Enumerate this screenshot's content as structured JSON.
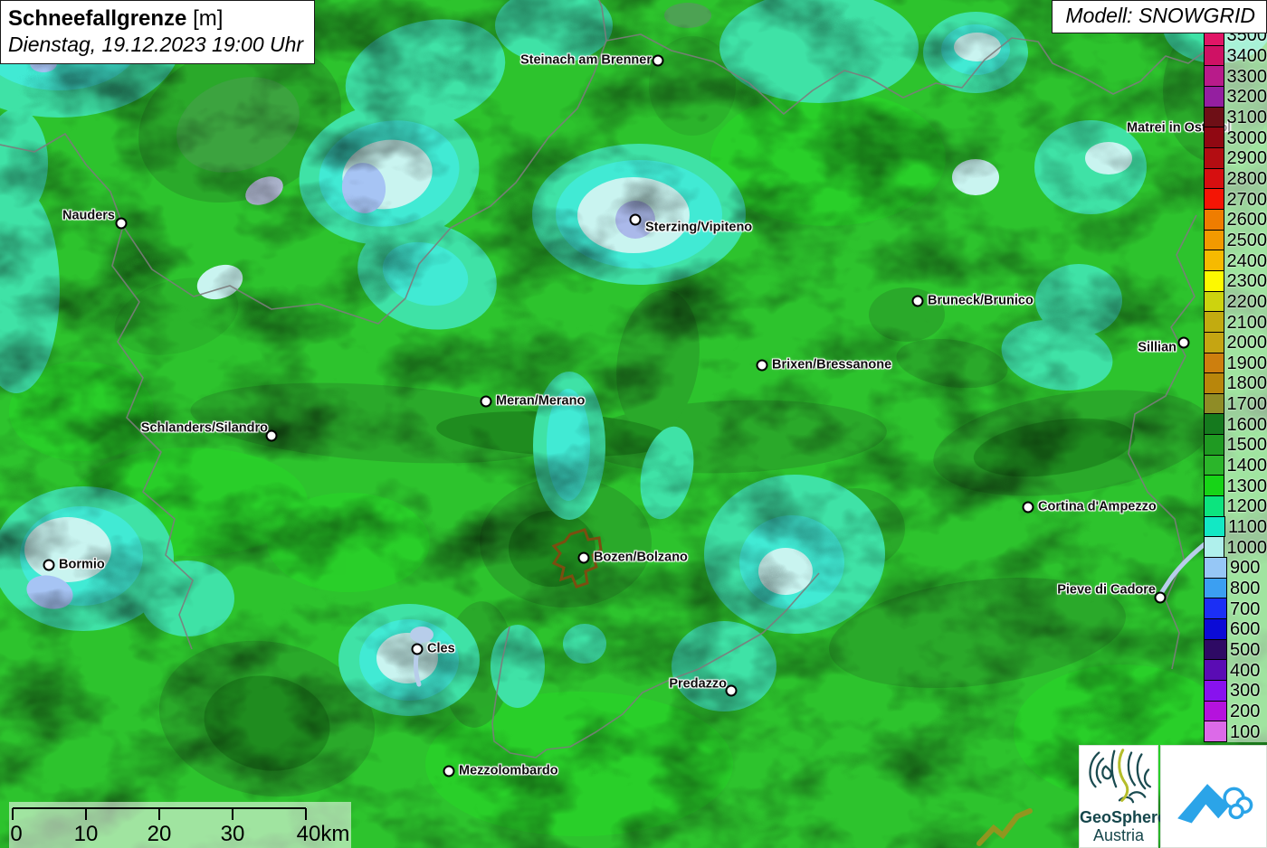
{
  "title": {
    "main": "Schneefallgrenze",
    "unit": "[m]",
    "datetime": "Dienstag, 19.12.2023 19:00 Uhr"
  },
  "model_label": "Modell: SNOWGRID",
  "legend": {
    "unit": "m",
    "entries": [
      {
        "value": "3500",
        "color": "#e11566"
      },
      {
        "value": "3400",
        "color": "#cf1164"
      },
      {
        "value": "3300",
        "color": "#b81b8a"
      },
      {
        "value": "3200",
        "color": "#941fa0"
      },
      {
        "value": "3100",
        "color": "#6e0f16"
      },
      {
        "value": "3000",
        "color": "#900812"
      },
      {
        "value": "2900",
        "color": "#b30d12"
      },
      {
        "value": "2800",
        "color": "#d60f10"
      },
      {
        "value": "2700",
        "color": "#f41505"
      },
      {
        "value": "2600",
        "color": "#ef7d00"
      },
      {
        "value": "2500",
        "color": "#f29a00"
      },
      {
        "value": "2400",
        "color": "#f6ba00"
      },
      {
        "value": "2300",
        "color": "#fdf900"
      },
      {
        "value": "2200",
        "color": "#cdd30e"
      },
      {
        "value": "2100",
        "color": "#c2ab10"
      },
      {
        "value": "2000",
        "color": "#c5a512"
      },
      {
        "value": "1900",
        "color": "#cd7f0e"
      },
      {
        "value": "1800",
        "color": "#b8860b"
      },
      {
        "value": "1700",
        "color": "#8f8c26"
      },
      {
        "value": "1600",
        "color": "#157a1e"
      },
      {
        "value": "1500",
        "color": "#1f9a22"
      },
      {
        "value": "1400",
        "color": "#2bb52a"
      },
      {
        "value": "1300",
        "color": "#17d417"
      },
      {
        "value": "1200",
        "color": "#0ce47e"
      },
      {
        "value": "1100",
        "color": "#12e8c4"
      },
      {
        "value": "1000",
        "color": "#aff0ec"
      },
      {
        "value": "900",
        "color": "#96c7f6"
      },
      {
        "value": "800",
        "color": "#3b9ff2"
      },
      {
        "value": "700",
        "color": "#1b2ff5"
      },
      {
        "value": "600",
        "color": "#0b0bd6"
      },
      {
        "value": "500",
        "color": "#2e0a64"
      },
      {
        "value": "400",
        "color": "#5a0cb4"
      },
      {
        "value": "300",
        "color": "#8812ee"
      },
      {
        "value": "200",
        "color": "#b512dd"
      },
      {
        "value": "100",
        "color": "#dc6ae8"
      }
    ]
  },
  "cities": [
    {
      "name": "Steinach am Brenner",
      "dot": [
        727,
        67
      ],
      "label": [
        720,
        67
      ],
      "anchor": "end"
    },
    {
      "name": "Matrei in Osttirol",
      "dot": [
        1345,
        142
      ],
      "label": [
        1245,
        142
      ],
      "anchor": "start"
    },
    {
      "name": "Nauders",
      "dot": [
        134,
        247
      ],
      "label": [
        127,
        239
      ],
      "anchor": "end"
    },
    {
      "name": "Sterzing/Vipiteno",
      "dot": [
        702,
        243
      ],
      "label": [
        713,
        252
      ],
      "anchor": "start"
    },
    {
      "name": "Bruneck/Brunico",
      "dot": [
        1014,
        333
      ],
      "label": [
        1025,
        333
      ],
      "anchor": "start"
    },
    {
      "name": "Sillian",
      "dot": [
        1308,
        379
      ],
      "label": [
        1300,
        385
      ],
      "anchor": "end"
    },
    {
      "name": "Brixen/Bressanone",
      "dot": [
        842,
        404
      ],
      "label": [
        853,
        404
      ],
      "anchor": "start"
    },
    {
      "name": "Meran/Merano",
      "dot": [
        537,
        444
      ],
      "label": [
        548,
        444
      ],
      "anchor": "start"
    },
    {
      "name": "Schlanders/Silandro",
      "dot": [
        300,
        482
      ],
      "label": [
        296,
        474
      ],
      "anchor": "end"
    },
    {
      "name": "Cortina d'Ampezzo",
      "dot": [
        1136,
        561
      ],
      "label": [
        1147,
        561
      ],
      "anchor": "start"
    },
    {
      "name": "Bormio",
      "dot": [
        54,
        625
      ],
      "label": [
        65,
        625
      ],
      "anchor": "start"
    },
    {
      "name": "Bozen/Bolzano",
      "dot": [
        645,
        617
      ],
      "label": [
        656,
        617
      ],
      "anchor": "start"
    },
    {
      "name": "Pieve di Cadore",
      "dot": [
        1282,
        661
      ],
      "label": [
        1277,
        653
      ],
      "anchor": "end"
    },
    {
      "name": "Cles",
      "dot": [
        461,
        718
      ],
      "label": [
        472,
        718
      ],
      "anchor": "start"
    },
    {
      "name": "Predazzo",
      "dot": [
        808,
        764
      ],
      "label": [
        803,
        757
      ],
      "anchor": "end"
    },
    {
      "name": "Mezzolombardo",
      "dot": [
        496,
        853
      ],
      "label": [
        507,
        853
      ],
      "anchor": "start"
    }
  ],
  "scalebar": {
    "labels": [
      "0",
      "10",
      "20",
      "30",
      "40km"
    ]
  },
  "logos": {
    "geosphere": {
      "line1": "GeoSphere",
      "line2": "Austria"
    },
    "blue_logo_color": "#2ba4e8",
    "geosphere_color": "#15464b"
  },
  "map_colors": {
    "base_green_1400": "#2dc32d",
    "bright_green_1300": "#27d827",
    "dark_green_1500": "#2aa42a",
    "darker_green_1600": "#1f8a1f",
    "teal_1200": "#3fe2a6",
    "cyan_1100": "#41ead4",
    "pale_cyan_1000": "#c9f4f0",
    "light_blue_900": "#a6c4f4",
    "border_gray": "#7c7c7c",
    "river_blue": "#b7cdea",
    "bozen_outline_brown": "#7a4e10"
  }
}
